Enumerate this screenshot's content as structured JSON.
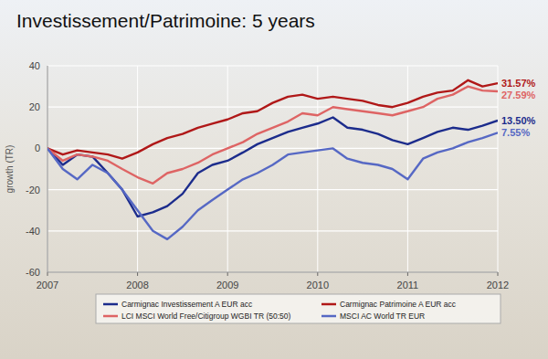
{
  "chart_data": {
    "type": "line",
    "title": "Investissement/Patrimoine: 5 years",
    "y_label": "growth (TR)",
    "x": [
      2007,
      2007.17,
      2007.33,
      2007.5,
      2007.67,
      2007.83,
      2008,
      2008.17,
      2008.33,
      2008.5,
      2008.67,
      2008.83,
      2009,
      2009.17,
      2009.33,
      2009.5,
      2009.67,
      2009.83,
      2010,
      2010.17,
      2010.33,
      2010.5,
      2010.67,
      2010.83,
      2011,
      2011.17,
      2011.33,
      2011.5,
      2011.67,
      2011.83,
      2012
    ],
    "series": [
      {
        "name": "Carmignac Investissement A EUR acc",
        "color": "#1c2c8c",
        "values": [
          0,
          -8,
          -3,
          -4,
          -12,
          -20,
          -33,
          -31,
          -28,
          -22,
          -12,
          -8,
          -6,
          -2,
          2,
          5,
          8,
          10,
          12,
          15,
          10,
          9,
          7,
          4,
          2,
          5,
          8,
          10,
          9,
          11,
          13.5
        ]
      },
      {
        "name": "Carmignac Patrimoine A EUR acc",
        "color": "#b01818",
        "values": [
          0,
          -3,
          -1,
          -2,
          -3,
          -5,
          -2,
          2,
          5,
          7,
          10,
          12,
          14,
          17,
          18,
          22,
          25,
          26,
          24,
          25,
          24,
          23,
          21,
          20,
          22,
          25,
          27,
          28,
          33,
          30,
          31.57
        ]
      },
      {
        "name": "LCI MSCI World Free/Citigroup WGBI TR (50:50)",
        "color": "#de6464",
        "values": [
          0,
          -6,
          -3,
          -4,
          -6,
          -10,
          -14,
          -17,
          -12,
          -10,
          -7,
          -3,
          0,
          3,
          7,
          10,
          13,
          17,
          16,
          20,
          19,
          18,
          17,
          16,
          18,
          20,
          24,
          26,
          30,
          28,
          27.59
        ]
      },
      {
        "name": "MSCI AC World TR EUR",
        "color": "#5668c4",
        "values": [
          0,
          -10,
          -15,
          -8,
          -12,
          -20,
          -30,
          -40,
          -44,
          -38,
          -30,
          -25,
          -20,
          -15,
          -12,
          -8,
          -3,
          -2,
          -1,
          0,
          -5,
          -7,
          -8,
          -10,
          -15,
          -5,
          -2,
          0,
          3,
          5,
          7.55
        ]
      }
    ],
    "annotations": [
      {
        "text": "31.57%",
        "value": 31.57,
        "color": "#b01818"
      },
      {
        "text": "27.59%",
        "value": 27.59,
        "color": "#de6464"
      },
      {
        "text": "13.50%",
        "value": 13.5,
        "color": "#1c2c8c"
      },
      {
        "text": "7.55%",
        "value": 7.55,
        "color": "#5668c4"
      }
    ],
    "xlim": [
      2007,
      2012
    ],
    "xticks": [
      2007,
      2008,
      2009,
      2010,
      2011,
      2012
    ],
    "ylim": [
      -60,
      40
    ],
    "yticks": [
      -60,
      -40,
      -20,
      0,
      20,
      40
    ],
    "grid": true,
    "legend": "bottom"
  }
}
